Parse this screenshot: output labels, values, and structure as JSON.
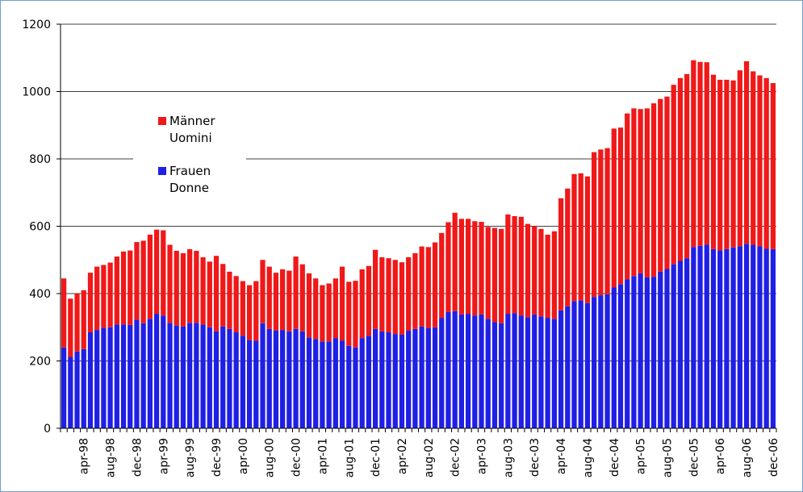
{
  "chart_data": {
    "type": "stacked-bar",
    "categories": [
      null,
      null,
      null,
      "apr-98",
      null,
      null,
      null,
      "aug-98",
      null,
      null,
      null,
      "dec-98",
      null,
      null,
      null,
      "apr-99",
      null,
      null,
      null,
      "aug-99",
      null,
      null,
      null,
      "dec-99",
      null,
      null,
      null,
      "apr-00",
      null,
      null,
      null,
      "aug-00",
      null,
      null,
      null,
      "dec-00",
      null,
      null,
      null,
      "apr-01",
      null,
      null,
      null,
      "aug-01",
      null,
      null,
      null,
      "dec-01",
      null,
      null,
      null,
      "apr-02",
      null,
      null,
      null,
      "aug-02",
      null,
      null,
      null,
      "dec-02",
      null,
      null,
      null,
      "apr-03",
      null,
      null,
      null,
      "aug-03",
      null,
      null,
      null,
      "dec-03",
      null,
      null,
      null,
      "apr-04",
      null,
      null,
      null,
      "aug-04",
      null,
      null,
      null,
      "dec-04",
      null,
      null,
      null,
      "apr-05",
      null,
      null,
      null,
      "aug-05",
      null,
      null,
      null,
      "dec-05",
      null,
      null,
      null,
      "apr-06",
      null,
      null,
      null,
      "aug-06",
      null,
      null,
      null,
      "dec-06"
    ],
    "series": [
      {
        "name": "Frauen\nDonne",
        "color": "#1f1fe6",
        "values": [
          240,
          212,
          228,
          235,
          285,
          292,
          298,
          300,
          308,
          308,
          307,
          322,
          312,
          325,
          340,
          335,
          313,
          305,
          302,
          313,
          313,
          308,
          300,
          288,
          302,
          295,
          285,
          275,
          262,
          260,
          312,
          295,
          290,
          292,
          288,
          295,
          288,
          270,
          265,
          258,
          258,
          268,
          260,
          245,
          240,
          268,
          275,
          295,
          288,
          285,
          280,
          278,
          290,
          295,
          302,
          298,
          300,
          328,
          345,
          348,
          338,
          340,
          335,
          338,
          325,
          315,
          312,
          340,
          342,
          335,
          330,
          338,
          332,
          328,
          325,
          350,
          362,
          378,
          380,
          372,
          390,
          395,
          398,
          418,
          428,
          442,
          452,
          460,
          448,
          450,
          465,
          473,
          487,
          497,
          505,
          538,
          542,
          545,
          532,
          528,
          532,
          537,
          540,
          548,
          545,
          540,
          533,
          532
        ]
      },
      {
        "name": "Männer\nUomini",
        "color": "#f01818",
        "values": [
          205,
          173,
          172,
          175,
          177,
          188,
          187,
          192,
          202,
          217,
          221,
          231,
          245,
          250,
          250,
          253,
          232,
          222,
          218,
          219,
          214,
          200,
          195,
          224,
          186,
          170,
          167,
          162,
          163,
          177,
          188,
          185,
          172,
          180,
          180,
          215,
          199,
          190,
          180,
          167,
          172,
          177,
          220,
          190,
          198,
          204,
          207,
          235,
          220,
          220,
          220,
          215,
          218,
          225,
          238,
          240,
          252,
          252,
          267,
          292,
          284,
          282,
          280,
          275,
          273,
          280,
          280,
          295,
          288,
          293,
          277,
          262,
          260,
          247,
          260,
          333,
          350,
          377,
          377,
          376,
          430,
          433,
          434,
          472,
          465,
          493,
          498,
          488,
          502,
          515,
          513,
          512,
          533,
          543,
          547,
          555,
          546,
          542,
          518,
          507,
          503,
          496,
          523,
          542,
          515,
          508,
          507,
          493
        ]
      }
    ],
    "ylim": [
      0,
      1200
    ],
    "yticks": [
      0,
      200,
      400,
      600,
      800,
      1000,
      1200
    ],
    "grid": true
  }
}
